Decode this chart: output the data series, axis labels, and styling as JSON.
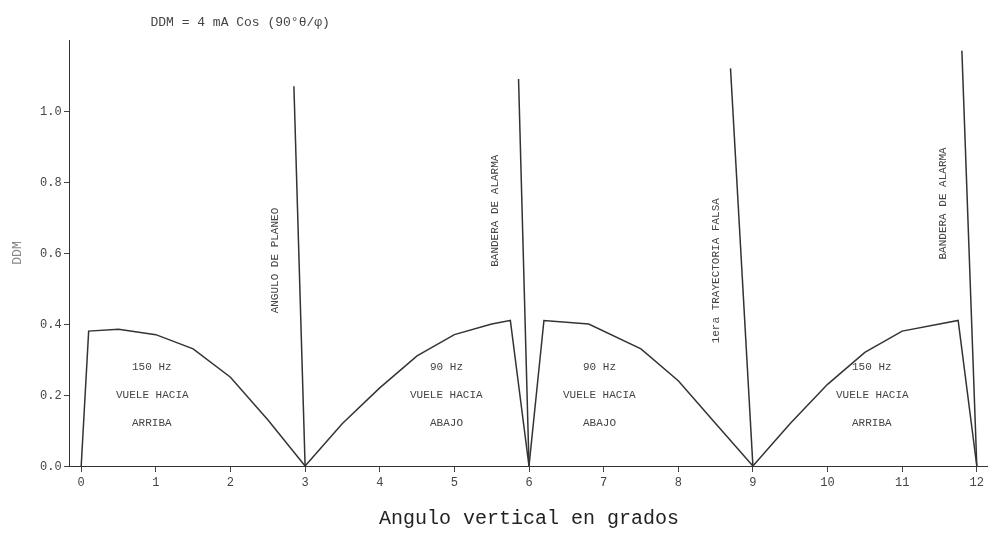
{
  "chart_data": {
    "type": "line",
    "title": "DDM = 4 mA Cos (90°θ/φ)",
    "xlabel": "Angulo vertical en grados",
    "ylabel": "DDM",
    "xlim": [
      -0.15,
      12.15
    ],
    "xticks": [
      0,
      1,
      2,
      3,
      4,
      5,
      6,
      7,
      8,
      9,
      10,
      11,
      12
    ],
    "ylim": [
      0,
      1.2
    ],
    "yticks": [
      {
        "value": 0,
        "label": "0.0"
      },
      {
        "value": 0.2,
        "label": "0.2"
      },
      {
        "value": 0.4,
        "label": "0.4"
      },
      {
        "value": 0.6,
        "label": "0.6"
      },
      {
        "value": 0.8,
        "label": "0.8"
      },
      {
        "value": 1.0,
        "label": "1.0"
      }
    ],
    "marker": "none",
    "line_style": "solid",
    "series": [
      {
        "color": "#333333",
        "x": [
          0,
          0.1,
          0.5,
          1.0,
          1.5,
          2.0,
          2.5,
          3.0,
          3.5,
          4.0,
          4.5,
          5.0,
          5.5,
          5.75,
          6.0,
          6.2,
          6.8,
          7.5,
          8.0,
          8.5,
          9.0,
          9.5,
          10.0,
          10.5,
          11.0,
          11.5,
          11.75,
          12.0
        ],
        "values": [
          0,
          0.38,
          0.385,
          0.37,
          0.33,
          0.25,
          0.13,
          0,
          0.12,
          0.22,
          0.31,
          0.37,
          0.4,
          0.41,
          0,
          0.41,
          0.4,
          0.33,
          0.24,
          0.12,
          0,
          0.12,
          0.23,
          0.32,
          0.38,
          0.4,
          0.41,
          0
        ]
      },
      {
        "color": "#333333",
        "x": [
          3.0,
          2.85,
          null,
          6.0,
          5.86,
          null,
          9.0,
          8.7,
          null,
          12.0,
          11.8
        ],
        "values": [
          0,
          1.07,
          null,
          0,
          1.09,
          null,
          0,
          1.12,
          null,
          0,
          1.17
        ]
      }
    ],
    "annotations": [
      "150 Hz",
      "VUELE HACIA",
      "ARRIBA",
      "ANGULO DE PLANEO",
      "90 Hz",
      "VUELE HACIA",
      "ABAJO",
      "BANDERA DE ALARMA",
      "90 Hz",
      "VUELE HACIA",
      "ABAJO",
      "1era TRAYECTORIA FALSA",
      "150 Hz",
      "VUELE HACIA",
      "ARRIBA",
      "BANDERA DE ALARMA"
    ]
  }
}
